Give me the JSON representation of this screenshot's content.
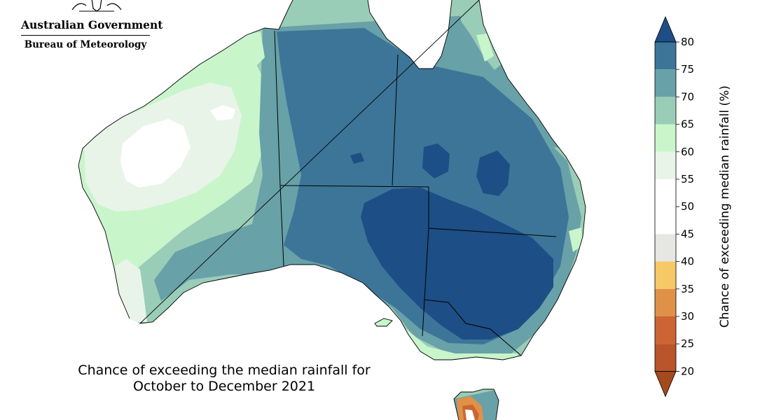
{
  "header": {
    "gov_title": "Australian Government",
    "bureau_title": "Bureau of Meteorology",
    "crest_icon": "coat-of-arms-icon"
  },
  "caption": {
    "line1": "Chance of exceeding the median rainfall for",
    "line2": "October to December 2021"
  },
  "legend": {
    "label": "Chance of exceeding median rainfall (%)",
    "ticks": [
      "20",
      "25",
      "30",
      "35",
      "40",
      "45",
      "50",
      "55",
      "60",
      "65",
      "70",
      "75",
      "80"
    ],
    "bands": [
      {
        "range": "<20",
        "color": "#a34a1e"
      },
      {
        "range": "20-25",
        "color": "#b9542b"
      },
      {
        "range": "25-30",
        "color": "#cd6433"
      },
      {
        "range": "30-35",
        "color": "#df9148"
      },
      {
        "range": "35-40",
        "color": "#f6c866"
      },
      {
        "range": "40-45",
        "color": "#e6e6e2"
      },
      {
        "range": "45-50",
        "color": "#ffffff"
      },
      {
        "range": "50-55",
        "color": "#ffffff"
      },
      {
        "range": "55-60",
        "color": "#e9f4e8"
      },
      {
        "range": "60-65",
        "color": "#c9f5cb"
      },
      {
        "range": "65-70",
        "color": "#99cdb7"
      },
      {
        "range": "70-75",
        "color": "#68a1a8"
      },
      {
        "range": "75-80",
        "color": "#3c7598"
      },
      {
        "range": ">80",
        "color": "#1d4e85"
      }
    ]
  }
}
